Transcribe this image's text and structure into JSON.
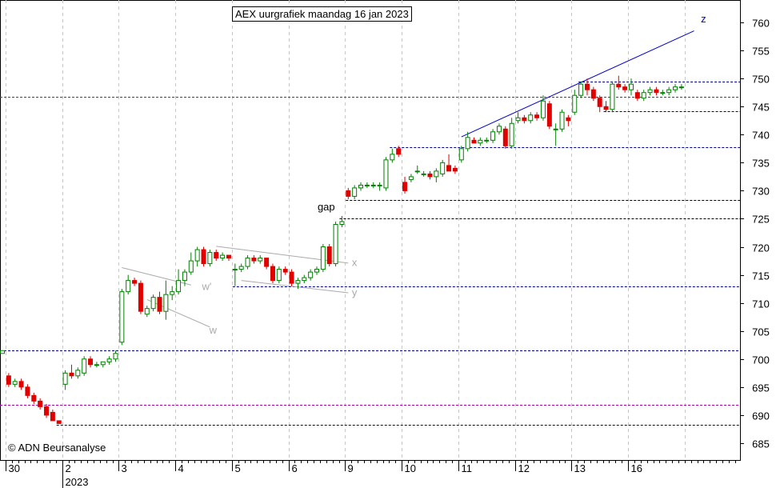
{
  "chart_data": {
    "type": "candlestick",
    "title": "AEX uurgrafiek maandag 16 jan 2023",
    "copyright": "© ADN Beursanalyse",
    "y_axis": {
      "side": "right",
      "ylim": [
        682,
        764
      ],
      "ticks": [
        685,
        690,
        695,
        700,
        705,
        710,
        715,
        720,
        725,
        730,
        735,
        740,
        745,
        750,
        755,
        760
      ]
    },
    "x_axis": {
      "day_labels": [
        "30",
        "2",
        "3",
        "4",
        "5",
        "6",
        "9",
        "10",
        "11",
        "12",
        "13",
        "16"
      ],
      "year_label": "2023",
      "bars_per_day": 9,
      "total_slots": 124
    },
    "colors": {
      "up_body": "#ffffff",
      "up_outline": "#008000",
      "down_body": "#e00000",
      "grid": "#c8c8c8"
    },
    "candles": [
      [
        0,
        701,
        701.5,
        701,
        701.5
      ],
      [
        1,
        697,
        697.5,
        695,
        695.5
      ],
      [
        2,
        695.5,
        696.5,
        695,
        696
      ],
      [
        3,
        696,
        696.5,
        694.5,
        695
      ],
      [
        4,
        695,
        695.5,
        693,
        693.5
      ],
      [
        5,
        693.5,
        694,
        692,
        692.5
      ],
      [
        6,
        692.5,
        693,
        691,
        691.5
      ],
      [
        7,
        691.5,
        692,
        689.5,
        690
      ],
      [
        8,
        690.5,
        691,
        689,
        689
      ],
      [
        9,
        689,
        689,
        688.5,
        688.5
      ],
      [
        10,
        695.5,
        698,
        694.5,
        697.5
      ],
      [
        11,
        697.5,
        699,
        696.5,
        697
      ],
      [
        12,
        697,
        698.5,
        696.5,
        698
      ],
      [
        13,
        697.5,
        700.5,
        697,
        700
      ],
      [
        14,
        700,
        700.5,
        698.5,
        699
      ],
      [
        15,
        699,
        699.5,
        698.5,
        699
      ],
      [
        16,
        699,
        699.5,
        698.5,
        699.5
      ],
      [
        17,
        699.5,
        700.5,
        699,
        700
      ],
      [
        18,
        700,
        701.5,
        699.5,
        701
      ],
      [
        19,
        703,
        712.5,
        702.5,
        712
      ],
      [
        20,
        712,
        715,
        711.5,
        714
      ],
      [
        21,
        714,
        714.5,
        713,
        713.5
      ],
      [
        22,
        713.5,
        714,
        708,
        708.5
      ],
      [
        23,
        708,
        709.5,
        707.5,
        709
      ],
      [
        24,
        709,
        711.5,
        708.5,
        711
      ],
      [
        25,
        711,
        712,
        708,
        708.5
      ],
      [
        26,
        708.5,
        714,
        707,
        711.5
      ],
      [
        27,
        711.5,
        713,
        710.5,
        712
      ],
      [
        28,
        712,
        716,
        711.5,
        714
      ],
      [
        29,
        714,
        716,
        713,
        715.5
      ],
      [
        30,
        715.5,
        719,
        715,
        717.5
      ],
      [
        31,
        717.5,
        720,
        716.5,
        719.5
      ],
      [
        32,
        719.5,
        720,
        716.5,
        717
      ],
      [
        33,
        717,
        719.5,
        716.5,
        719
      ],
      [
        34,
        719,
        719.5,
        717.5,
        718
      ],
      [
        35,
        718,
        719,
        717.5,
        718.5
      ],
      [
        36,
        718.5,
        718.5,
        717.5,
        718
      ],
      [
        37,
        716,
        717,
        713,
        716
      ],
      [
        38,
        716,
        717,
        715.5,
        716.5
      ],
      [
        39,
        716.5,
        718.5,
        716,
        718
      ],
      [
        40,
        718,
        718.5,
        717,
        717.5
      ],
      [
        41,
        717.5,
        718.5,
        717,
        718
      ],
      [
        42,
        718,
        718,
        716,
        716.5
      ],
      [
        43,
        716.5,
        717,
        713.5,
        714
      ],
      [
        44,
        714,
        716.5,
        713.5,
        716
      ],
      [
        45,
        716,
        716.5,
        715,
        715.5
      ],
      [
        46,
        715.5,
        716,
        713,
        713.5
      ],
      [
        47,
        713.5,
        714.5,
        712.5,
        714
      ],
      [
        48,
        714,
        715,
        713.5,
        714.5
      ],
      [
        49,
        714.5,
        716,
        714,
        715.5
      ],
      [
        50,
        715.5,
        716.5,
        715,
        716
      ],
      [
        51,
        716,
        720.5,
        715.5,
        720
      ],
      [
        52,
        720,
        720.5,
        716.5,
        717
      ],
      [
        53,
        717,
        724.5,
        716.5,
        724
      ],
      [
        54,
        724,
        725.5,
        723.5,
        724.5
      ],
      [
        55,
        730,
        730.5,
        728.5,
        729
      ],
      [
        56,
        729,
        731,
        728.5,
        730.5
      ],
      [
        57,
        730.5,
        731.5,
        730,
        731
      ],
      [
        58,
        731,
        731.5,
        730.5,
        731
      ],
      [
        59,
        731,
        731.5,
        730.5,
        731
      ],
      [
        60,
        731,
        731.5,
        730,
        731
      ],
      [
        61,
        730.5,
        736,
        730,
        735.5
      ],
      [
        62,
        735.5,
        737.5,
        735,
        736.5
      ],
      [
        63,
        737.5,
        738,
        736,
        736.5
      ],
      [
        64,
        731.5,
        732.5,
        729.5,
        730
      ],
      [
        65,
        732,
        733,
        731.5,
        732.5
      ],
      [
        66,
        733.5,
        734.5,
        733,
        733.5
      ],
      [
        67,
        733,
        733.5,
        732.5,
        733
      ],
      [
        68,
        733,
        733.5,
        732,
        732.5
      ],
      [
        69,
        732.5,
        734,
        731.5,
        733.5
      ],
      [
        70,
        733,
        735.5,
        732.5,
        735
      ],
      [
        71,
        734.5,
        736.5,
        733.5,
        733.5
      ],
      [
        72,
        734,
        734.5,
        733,
        733.5
      ],
      [
        73,
        735.5,
        738,
        735,
        737.5
      ],
      [
        74,
        737.5,
        740.5,
        737,
        739.5
      ],
      [
        75,
        739,
        739.5,
        738.5,
        738.5
      ],
      [
        76,
        738.5,
        739.5,
        738,
        739
      ],
      [
        77,
        739,
        739.5,
        738.5,
        739
      ],
      [
        78,
        739,
        741,
        738.5,
        740.5
      ],
      [
        79,
        740.5,
        742,
        740,
        741.5
      ],
      [
        80,
        741,
        741.5,
        737.5,
        738
      ],
      [
        81,
        738,
        743,
        737.5,
        742
      ],
      [
        82,
        742.5,
        744,
        742,
        743
      ],
      [
        83,
        743,
        743.5,
        742,
        742.5
      ],
      [
        84,
        742.5,
        744,
        742,
        743.5
      ],
      [
        85,
        743.5,
        744,
        742.5,
        743
      ],
      [
        86,
        743,
        747,
        742.5,
        746
      ],
      [
        87,
        745.5,
        746,
        741,
        741.5
      ],
      [
        88,
        741,
        742,
        738,
        741
      ],
      [
        89,
        741,
        744.5,
        740.5,
        744
      ],
      [
        90,
        743,
        743.5,
        741.5,
        742.5
      ],
      [
        91,
        744,
        748,
        743.5,
        747
      ],
      [
        92,
        747,
        749.5,
        746.5,
        749
      ],
      [
        93,
        749,
        750,
        747,
        748
      ],
      [
        94,
        748,
        748.5,
        746,
        746.5
      ],
      [
        95,
        746.5,
        747,
        744,
        745
      ],
      [
        96,
        745,
        746,
        744,
        744.5
      ],
      [
        97,
        744.5,
        749.5,
        744,
        749
      ],
      [
        98,
        749,
        750.5,
        748,
        748.5
      ],
      [
        99,
        748.5,
        749,
        747.5,
        748
      ],
      [
        100,
        748,
        750,
        747,
        749
      ],
      [
        101,
        747.5,
        748,
        746,
        746.5
      ],
      [
        102,
        746.5,
        748,
        746,
        747.5
      ],
      [
        103,
        747.5,
        748.5,
        747,
        748
      ],
      [
        104,
        748,
        748.5,
        747,
        747.5
      ],
      [
        105,
        747.5,
        748,
        747,
        747.5
      ],
      [
        106,
        747.5,
        748.5,
        747,
        748
      ],
      [
        107,
        748,
        749,
        747.5,
        748.5
      ],
      [
        108,
        748.5,
        749,
        748,
        748.5
      ]
    ],
    "horizontal_lines": [
      {
        "y": 749.4,
        "x1": 92,
        "x2": 124,
        "color": "#000090",
        "style": "dashed"
      },
      {
        "y": 746.7,
        "x1": -1,
        "x2": 124,
        "color": "#aa00aa",
        "style": "dashed"
      },
      {
        "y": 744.2,
        "x1": 96,
        "x2": 124,
        "color": "#000090",
        "style": "dashed"
      },
      {
        "y": 737.8,
        "x1": 62,
        "x2": 124,
        "color": "#000090",
        "style": "dashed"
      },
      {
        "y": 728.4,
        "x1": 55,
        "x2": 124,
        "color": "#000000",
        "style": "dashed"
      },
      {
        "y": 725.1,
        "x1": 54,
        "x2": 124,
        "color": "#000000",
        "style": "dashed"
      },
      {
        "y": 713.0,
        "x1": 37,
        "x2": 124,
        "color": "#000090",
        "style": "dashed"
      },
      {
        "y": 701.6,
        "x1": -1,
        "x2": 124,
        "color": "#000090",
        "style": "dashed"
      },
      {
        "y": 691.8,
        "x1": -1,
        "x2": 124,
        "color": "#aa00aa",
        "style": "dashed"
      },
      {
        "y": 688.3,
        "x1": 9,
        "x2": 124,
        "color": "#000090",
        "style": "dashed"
      }
    ],
    "trend_lines": [
      {
        "x1": 73,
        "y1": 739.6,
        "x2": 110,
        "y2": 758.5,
        "color": "#0000cc",
        "label": "z"
      },
      {
        "x1": 19,
        "y1": 716.3,
        "x2": 30,
        "y2": 713.2,
        "color": "#aaaaaa",
        "label": ""
      },
      {
        "x1": 23,
        "y1": 710.6,
        "x2": 33,
        "y2": 705.7,
        "color": "#aaaaaa",
        "label": "w"
      },
      {
        "x1": 34,
        "y1": 720.1,
        "x2": 55,
        "y2": 717.1,
        "color": "#aaaaaa",
        "label": "x"
      },
      {
        "x1": 38,
        "y1": 714.0,
        "x2": 55,
        "y2": 711.8,
        "color": "#aaaaaa",
        "label": "y"
      }
    ],
    "annotations": [
      {
        "text": "gap",
        "x": 51.5,
        "y": 726.5,
        "color": "#000000"
      },
      {
        "text": "w'",
        "x": 32.5,
        "y": 712.3,
        "color": "#aaaaaa"
      },
      {
        "text": "w",
        "x": 33.5,
        "y": 704.5,
        "color": "#aaaaaa"
      },
      {
        "text": "x",
        "x": 56,
        "y": 716.6,
        "color": "#aaaaaa"
      },
      {
        "text": "y",
        "x": 56,
        "y": 711.2,
        "color": "#aaaaaa"
      },
      {
        "text": "z",
        "x": 111.5,
        "y": 760,
        "color": "#0000cc"
      }
    ]
  }
}
